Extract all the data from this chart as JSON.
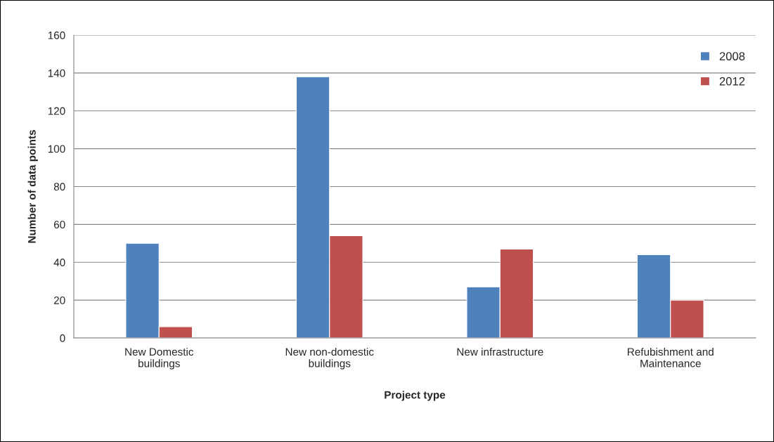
{
  "chart_data": {
    "type": "bar",
    "xlabel": "Project type",
    "ylabel": "Number of data points",
    "categories": [
      "New Domestic\nbuildings",
      "New non-domestic\nbuildings",
      "New infrastructure",
      "Refubishment and\nMaintenance"
    ],
    "series": [
      {
        "name": "2008",
        "color": "#4f81bd",
        "values": [
          50,
          138,
          27,
          44
        ]
      },
      {
        "name": "2012",
        "color": "#c0504d",
        "values": [
          6,
          54,
          47,
          20
        ]
      }
    ],
    "ylim": [
      0,
      160
    ],
    "yticks": [
      0,
      20,
      40,
      60,
      80,
      100,
      120,
      140,
      160
    ],
    "grid": "y",
    "legend": "top right"
  }
}
